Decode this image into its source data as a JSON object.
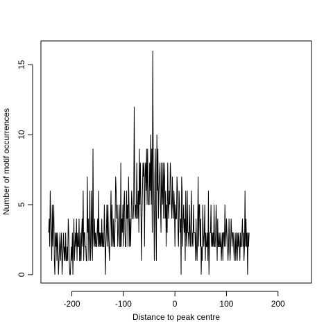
{
  "chart_data": {
    "type": "line",
    "title": "",
    "xlabel": "Distance to peak centre",
    "ylabel": "Number of motif occurrences",
    "xlim": [
      -260,
      265
    ],
    "ylim": [
      -0.6,
      16.7
    ],
    "x_ticks": [
      -200,
      -100,
      0,
      100,
      200
    ],
    "x_tick_labels": [
      "-200",
      "-100",
      "0",
      "100",
      "200"
    ],
    "y_ticks": [
      0,
      5,
      10,
      15
    ],
    "y_tick_labels": [
      "0",
      "5",
      "10",
      "15"
    ],
    "grid": false,
    "legend": "none",
    "line_color": "#000000",
    "x_start": -245,
    "x_step": 1,
    "values": [
      3,
      4,
      2,
      6,
      4,
      3,
      1,
      5,
      2,
      4,
      5,
      1,
      0,
      3,
      2,
      3,
      1,
      3,
      2,
      0,
      1,
      2,
      3,
      1,
      2,
      3,
      0,
      1,
      2,
      3,
      1,
      2,
      1,
      3,
      1,
      1,
      2,
      1,
      4,
      3,
      1,
      0,
      0,
      1,
      2,
      1,
      3,
      0,
      2,
      4,
      1,
      2,
      3,
      2,
      4,
      1,
      3,
      2,
      2,
      4,
      1,
      1,
      3,
      1,
      3,
      4,
      2,
      6,
      1,
      3,
      3,
      2,
      2,
      1,
      1,
      7,
      3,
      4,
      1,
      3,
      6,
      1,
      2,
      6,
      3,
      1,
      9,
      3,
      2,
      4,
      2,
      3,
      2,
      2,
      3,
      4,
      2,
      6,
      2,
      3,
      2,
      3,
      2,
      4,
      2,
      3,
      2,
      2,
      5,
      3,
      0,
      2,
      3,
      5,
      2,
      5,
      3,
      2,
      1,
      3,
      4,
      6,
      2,
      5,
      3,
      2,
      4,
      2,
      2,
      4,
      7,
      6,
      4,
      5,
      2,
      3,
      4,
      5,
      2,
      2,
      8,
      2,
      4,
      3,
      5,
      2,
      5,
      6,
      3,
      2,
      2,
      6,
      4,
      5,
      2,
      7,
      5,
      2,
      4,
      2,
      4,
      6,
      5,
      4,
      4,
      5,
      12,
      6,
      4,
      5,
      4,
      8,
      5,
      4,
      6,
      3,
      9,
      5,
      8,
      5,
      1,
      4,
      6,
      8,
      7,
      8,
      2,
      7,
      8,
      6,
      9,
      5,
      9,
      6,
      5,
      5,
      8,
      6,
      10,
      5,
      9,
      3,
      16,
      8,
      5,
      1,
      7,
      9,
      4,
      1,
      10,
      6,
      9,
      4,
      6,
      7,
      8,
      5,
      3,
      8,
      6,
      5,
      8,
      4,
      8,
      7,
      4,
      6,
      2,
      5,
      3,
      8,
      5,
      4,
      6,
      5,
      8,
      7,
      5,
      4,
      7,
      5,
      4,
      6,
      5,
      2,
      5,
      4,
      4,
      7,
      6,
      3,
      2,
      6,
      5,
      3,
      4,
      0,
      7,
      6,
      2,
      4,
      5,
      3,
      4,
      1,
      6,
      3,
      2,
      6,
      3,
      3,
      2,
      5,
      3,
      2,
      4,
      6,
      2,
      3,
      2,
      5,
      3,
      3,
      3,
      1,
      4,
      2,
      1,
      3,
      7,
      2,
      5,
      5,
      2,
      4,
      0,
      2,
      1,
      5,
      3,
      2,
      3,
      5,
      1,
      3,
      2,
      2,
      3,
      1,
      6,
      0,
      2,
      3,
      3,
      5,
      2,
      3,
      2,
      3,
      2,
      5,
      2,
      2,
      3,
      5,
      3,
      1,
      4,
      2,
      2,
      3,
      2,
      2,
      3,
      1,
      2,
      3,
      1,
      3,
      3,
      2,
      5,
      3,
      2,
      4,
      3,
      2,
      1,
      2,
      4,
      2,
      1,
      2,
      4,
      3,
      2,
      3,
      3,
      2,
      1,
      2,
      3,
      1,
      3,
      2,
      1,
      3,
      2,
      3,
      2,
      1,
      3,
      2,
      2,
      3,
      4,
      2,
      3,
      1,
      2,
      6,
      2,
      4,
      2,
      3,
      0,
      3,
      2,
      3
    ]
  }
}
